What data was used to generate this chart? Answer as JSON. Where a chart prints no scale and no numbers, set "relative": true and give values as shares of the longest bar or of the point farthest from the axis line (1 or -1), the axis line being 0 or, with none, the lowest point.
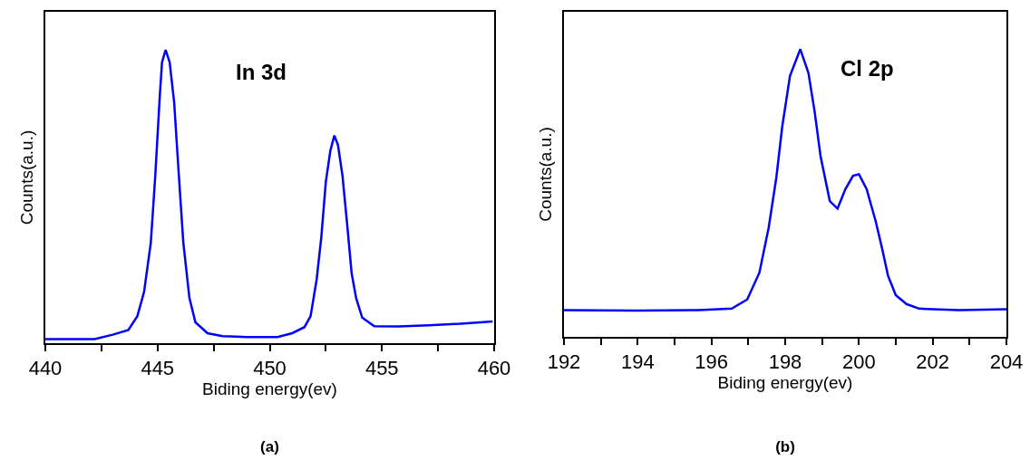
{
  "chart_data": [
    {
      "type": "line",
      "title": "(a)",
      "xlabel": "Biding energy(ev)",
      "ylabel": "Counts(a.u.)",
      "annotations": [
        "In 3d"
      ],
      "relative": true,
      "xlim": [
        440,
        460
      ],
      "xticks": [
        440,
        {
          "value": 442.5,
          "label": null
        },
        445,
        {
          "value": 447.5,
          "label": null
        },
        450,
        {
          "value": 452.5,
          "label": null
        },
        455,
        {
          "value": 457.5,
          "label": null
        },
        460
      ],
      "x": [
        440,
        442.2,
        443.0,
        443.7,
        444.1,
        444.4,
        444.7,
        444.9,
        445.1,
        445.2,
        445.36,
        445.54,
        445.74,
        445.95,
        446.15,
        446.42,
        446.69,
        447.23,
        447.9,
        448.99,
        450.34,
        451.0,
        451.55,
        451.82,
        452.09,
        452.3,
        452.5,
        452.7,
        452.88,
        453.04,
        453.24,
        453.45,
        453.65,
        453.85,
        454.12,
        454.66,
        455.74,
        457.09,
        458.45,
        459.93
      ],
      "series": [
        {
          "color": "#0000ff",
          "values": [
            0.014,
            0.014,
            0.029,
            0.045,
            0.092,
            0.175,
            0.342,
            0.572,
            0.843,
            0.958,
            1,
            0.958,
            0.822,
            0.572,
            0.342,
            0.154,
            0.071,
            0.034,
            0.024,
            0.021,
            0.021,
            0.034,
            0.055,
            0.092,
            0.217,
            0.363,
            0.551,
            0.656,
            0.708,
            0.676,
            0.572,
            0.405,
            0.238,
            0.154,
            0.087,
            0.058,
            0.057,
            0.061,
            0.066,
            0.074
          ]
        }
      ]
    },
    {
      "type": "line",
      "title": "(b)",
      "xlabel": "Biding energy(ev)",
      "ylabel": "Counts(a.u.)",
      "annotations": [
        "Cl 2p"
      ],
      "relative": true,
      "xlim": [
        192,
        204
      ],
      "xticks": [
        192,
        {
          "value": 193,
          "label": null
        },
        194,
        {
          "value": 195,
          "label": null
        },
        196,
        {
          "value": 197,
          "label": null
        },
        198,
        {
          "value": 199,
          "label": null
        },
        200,
        {
          "value": 201,
          "label": null
        },
        202,
        {
          "value": 203,
          "label": null
        },
        204
      ],
      "x": [
        192,
        193.97,
        195.64,
        196.55,
        196.97,
        197.3,
        197.55,
        197.76,
        197.92,
        198.13,
        198.41,
        198.63,
        198.8,
        198.96,
        199.21,
        199.42,
        199.63,
        199.84,
        200.0,
        200.21,
        200.46,
        200.63,
        200.79,
        201.0,
        201.29,
        201.63,
        202.71,
        204
      ],
      "series": [
        {
          "color": "#0000ff",
          "values": [
            0.093,
            0.091,
            0.093,
            0.098,
            0.13,
            0.223,
            0.378,
            0.554,
            0.731,
            0.907,
            1,
            0.917,
            0.782,
            0.627,
            0.472,
            0.446,
            0.513,
            0.56,
            0.565,
            0.513,
            0.399,
            0.306,
            0.212,
            0.145,
            0.114,
            0.098,
            0.093,
            0.096
          ]
        }
      ]
    }
  ]
}
